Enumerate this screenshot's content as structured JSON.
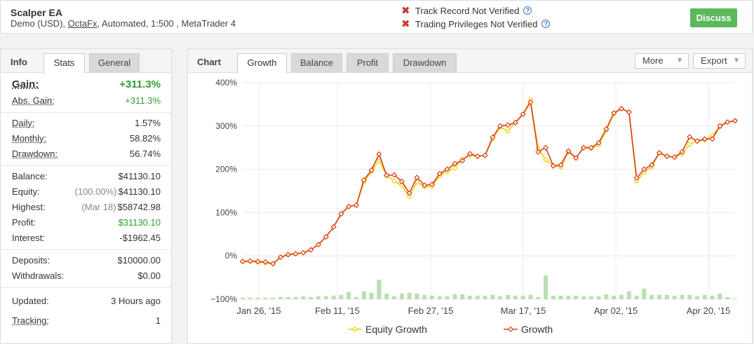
{
  "header": {
    "name": "Scalper EA",
    "desc_prefix": "Demo (USD), ",
    "broker": "OctaFx",
    "desc_suffix": ", Automated, 1:500 , MetaTrader 4",
    "verify1": "Track Record Not Verified",
    "verify2": "Trading Privileges Not Verified",
    "discuss": "Discuss"
  },
  "left": {
    "title": "Info",
    "tabs": [
      "Stats",
      "General"
    ],
    "gain_label": "Gain:",
    "gain_value": "+311.3%",
    "abs_gain_label": "Abs. Gain:",
    "abs_gain_value": "+311.3%",
    "daily_label": "Daily:",
    "daily_value": "1.57%",
    "monthly_label": "Monthly:",
    "monthly_value": "58.82%",
    "drawdown_label": "Drawdown:",
    "drawdown_value": "56.74%",
    "balance_label": "Balance:",
    "balance_value": "$41130.10",
    "equity_label": "Equity:",
    "equity_sub": "(100.00%)",
    "equity_value": "$41130.10",
    "highest_label": "Highest:",
    "highest_sub": "(Mar 18)",
    "highest_value": "$58742.98",
    "profit_label": "Profit:",
    "profit_value": "$31130.10",
    "interest_label": "Interest:",
    "interest_value": "-$1962.45",
    "deposits_label": "Deposits:",
    "deposits_value": "$10000.00",
    "withdrawals_label": "Withdrawals:",
    "withdrawals_value": "$0.00",
    "updated_label": "Updated:",
    "updated_value": "3 Hours ago",
    "tracking_label": "Tracking:",
    "tracking_value": "1"
  },
  "chart_panel": {
    "title": "Chart",
    "tabs": [
      "Growth",
      "Balance",
      "Profit",
      "Drawdown"
    ],
    "more": "More",
    "export": "Export"
  },
  "colors": {
    "growth": "#d9401a",
    "equity": "#f0d000",
    "bars": "#b8e0b0",
    "green": "#2e9e2e",
    "discuss": "#5cb85c"
  },
  "chart_data": {
    "type": "line",
    "y_ticks": [
      "400%",
      "300%",
      "200%",
      "100%",
      "0%",
      "−100%"
    ],
    "ylim": [
      -100,
      400
    ],
    "x_ticks": [
      "Jan 26, '15",
      "Feb 11, '15",
      "Feb 27, '15",
      "Mar 17, '15",
      "Apr 02, '15",
      "Apr 20, '15"
    ],
    "series": [
      {
        "name": "Growth",
        "values": [
          -13,
          -12,
          -13,
          -14,
          -18,
          -3,
          3,
          5,
          7,
          14,
          26,
          44,
          67,
          97,
          114,
          117,
          175,
          198,
          235,
          186,
          187,
          172,
          145,
          181,
          163,
          165,
          190,
          200,
          213,
          220,
          236,
          230,
          232,
          274,
          300,
          302,
          308,
          327,
          355,
          240,
          250,
          208,
          210,
          242,
          226,
          250,
          250,
          261,
          293,
          330,
          340,
          332,
          180,
          200,
          210,
          238,
          230,
          228,
          240,
          275,
          265,
          270,
          270,
          300,
          309,
          312
        ]
      },
      {
        "name": "Equity Growth",
        "values": [
          -13,
          -13,
          -15,
          -16,
          -18,
          -3,
          2,
          4,
          7,
          14,
          26,
          44,
          67,
          97,
          114,
          117,
          170,
          195,
          220,
          186,
          173,
          163,
          137,
          170,
          160,
          160,
          185,
          195,
          203,
          223,
          232,
          230,
          232,
          270,
          298,
          288,
          308,
          327,
          360,
          248,
          222,
          208,
          205,
          240,
          226,
          250,
          248,
          256,
          290,
          328,
          340,
          332,
          173,
          193,
          205,
          238,
          230,
          228,
          235,
          258,
          265,
          268,
          278,
          298,
          309,
          312
        ]
      }
    ],
    "volume": [
      2,
      2,
      2,
      2,
      2,
      3,
      3,
      3,
      4,
      3,
      4,
      4,
      5,
      6,
      10,
      3,
      11,
      9,
      28,
      8,
      4,
      8,
      9,
      8,
      6,
      5,
      4,
      4,
      7,
      7,
      5,
      5,
      5,
      6,
      4,
      6,
      5,
      5,
      6,
      3,
      34,
      5,
      5,
      5,
      5,
      4,
      4,
      4,
      7,
      5,
      6,
      11,
      5,
      15,
      6,
      6,
      6,
      5,
      6,
      6,
      4,
      6,
      5,
      8,
      3,
      1
    ],
    "legend": [
      "Equity Growth",
      "Growth"
    ]
  }
}
